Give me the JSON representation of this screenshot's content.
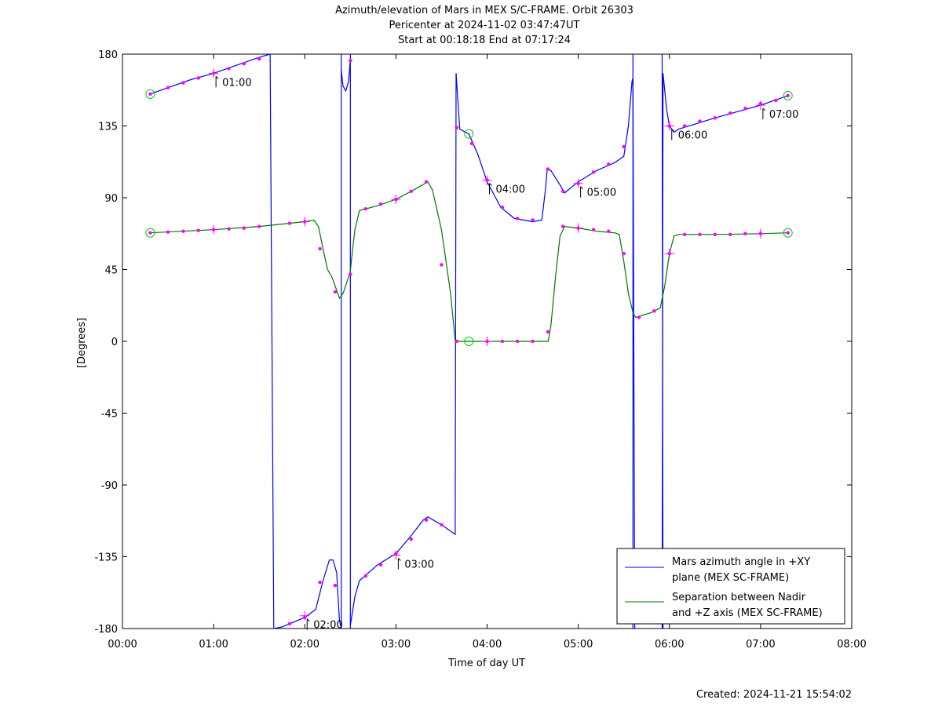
{
  "chart_data": {
    "type": "line",
    "title": [
      "Azimuth/elevation of Mars in MEX S/C-FRAME.  Orbit 26303",
      "Pericenter at 2024-11-02 03:47:47UT",
      "Start at 00:18:18 End at 07:17:24"
    ],
    "xlabel": "Time of day UT",
    "ylabel": "[Degrees]",
    "xlim": [
      0,
      8
    ],
    "ylim": [
      -180,
      180
    ],
    "x_ticks": [
      0,
      1,
      2,
      3,
      4,
      5,
      6,
      7,
      8
    ],
    "x_tick_labels": [
      "00:00",
      "01:00",
      "02:00",
      "03:00",
      "04:00",
      "05:00",
      "06:00",
      "07:00",
      "08:00"
    ],
    "y_ticks": [
      180,
      135,
      90,
      45,
      0,
      -45,
      -90,
      -135,
      -180
    ],
    "y_tick_labels": [
      "180",
      "135",
      "90",
      "45",
      "0",
      "-45",
      "-90",
      "-135",
      "-180"
    ],
    "grid": false,
    "legend_position": "bottom-right",
    "series": [
      {
        "name_lines": [
          "Mars azimuth angle in +XY",
          "plane (MEX SC-FRAME)"
        ],
        "color": "#0000ff",
        "segments": [
          [
            [
              0.305,
              155
            ],
            [
              0.5,
              159
            ],
            [
              0.75,
              164
            ],
            [
              1.0,
              168
            ],
            [
              1.25,
              173
            ],
            [
              1.5,
              178
            ],
            [
              1.62,
              180
            ]
          ],
          [
            [
              1.66,
              -180
            ],
            [
              1.75,
              -179
            ],
            [
              2.0,
              -173
            ],
            [
              2.12,
              -168
            ],
            [
              2.2,
              -150
            ],
            [
              2.27,
              -137
            ],
            [
              2.31,
              -137
            ],
            [
              2.35,
              -145
            ],
            [
              2.38,
              -175
            ],
            [
              2.4,
              -180
            ]
          ],
          [
            [
              2.4,
              170
            ],
            [
              2.42,
              160
            ],
            [
              2.45,
              157
            ],
            [
              2.48,
              163
            ],
            [
              2.5,
              176
            ]
          ],
          [
            [
              2.5,
              -178
            ],
            [
              2.55,
              -160
            ],
            [
              2.6,
              -150
            ],
            [
              2.8,
              -140
            ],
            [
              3.0,
              -133
            ],
            [
              3.15,
              -123
            ],
            [
              3.3,
              -112
            ],
            [
              3.35,
              -110
            ],
            [
              3.5,
              -115
            ],
            [
              3.65,
              -121
            ],
            [
              3.66,
              168
            ]
          ],
          [
            [
              3.66,
              168
            ],
            [
              3.7,
              133
            ],
            [
              3.8,
              130
            ],
            [
              3.9,
              117
            ],
            [
              4.0,
              100
            ],
            [
              4.15,
              84
            ],
            [
              4.3,
              77
            ],
            [
              4.5,
              75
            ],
            [
              4.6,
              76
            ],
            [
              4.64,
              95
            ],
            [
              4.66,
              108
            ],
            [
              4.7,
              107
            ],
            [
              4.8,
              98
            ],
            [
              4.85,
              93
            ],
            [
              5.0,
              100
            ],
            [
              5.2,
              107
            ],
            [
              5.4,
              112
            ],
            [
              5.5,
              116
            ],
            [
              5.55,
              135
            ],
            [
              5.59,
              163
            ],
            [
              5.6,
              165
            ]
          ],
          [
            [
              5.6,
              165
            ],
            [
              5.62,
              -180
            ]
          ],
          [
            [
              5.92,
              -180
            ],
            [
              5.93,
              168
            ]
          ],
          [
            [
              5.93,
              168
            ],
            [
              5.97,
              145
            ],
            [
              6.0,
              135
            ],
            [
              6.05,
              131
            ],
            [
              6.1,
              133
            ],
            [
              6.5,
              140
            ],
            [
              7.0,
              148
            ],
            [
              7.3,
              154
            ]
          ]
        ],
        "drops": [
          [
            1.62,
            1.66
          ],
          [
            2.4,
            2.4
          ],
          [
            2.5,
            2.5
          ],
          [
            5.6,
            5.6
          ],
          [
            5.92,
            5.93
          ]
        ],
        "markers": [
          [
            0.305,
            155
          ],
          [
            0.5,
            159
          ],
          [
            0.667,
            162
          ],
          [
            0.833,
            165
          ],
          [
            1.0,
            168
          ],
          [
            1.167,
            171
          ],
          [
            1.333,
            174
          ],
          [
            1.5,
            177
          ],
          [
            1.833,
            -177
          ],
          [
            2.0,
            -173
          ],
          [
            2.167,
            -151
          ],
          [
            2.333,
            -153
          ],
          [
            2.5,
            176
          ],
          [
            2.667,
            -147
          ],
          [
            2.833,
            -140
          ],
          [
            3.0,
            -133
          ],
          [
            3.167,
            -124
          ],
          [
            3.333,
            -112
          ],
          [
            3.5,
            -115
          ],
          [
            3.667,
            134
          ],
          [
            3.833,
            124
          ],
          [
            4.0,
            101
          ],
          [
            4.167,
            84
          ],
          [
            4.333,
            77
          ],
          [
            4.5,
            76
          ],
          [
            4.667,
            108
          ],
          [
            4.833,
            94
          ],
          [
            5.0,
            99
          ],
          [
            5.167,
            106
          ],
          [
            5.333,
            111
          ],
          [
            5.5,
            122
          ],
          [
            6.0,
            135
          ],
          [
            6.167,
            135
          ],
          [
            6.333,
            138
          ],
          [
            6.5,
            140
          ],
          [
            6.667,
            143
          ],
          [
            6.833,
            146
          ],
          [
            7.0,
            149
          ],
          [
            7.167,
            151
          ],
          [
            7.3,
            154
          ]
        ],
        "hour_marks": [
          [
            1.0,
            168
          ],
          [
            2.0,
            -172
          ],
          [
            3.0,
            -134
          ],
          [
            4.0,
            101
          ],
          [
            5.0,
            99
          ],
          [
            6.0,
            135
          ],
          [
            7.0,
            148
          ]
        ]
      },
      {
        "name_lines": [
          "Separation between Nadir",
          "and +Z axis (MEX SC-FRAME)"
        ],
        "color": "#007700",
        "segments": [
          [
            [
              0.305,
              68
            ],
            [
              1.0,
              70
            ],
            [
              1.5,
              72
            ],
            [
              2.0,
              75
            ],
            [
              2.1,
              76
            ],
            [
              2.15,
              72
            ],
            [
              2.2,
              58
            ],
            [
              2.25,
              45
            ],
            [
              2.3,
              40
            ],
            [
              2.35,
              32
            ],
            [
              2.38,
              27
            ],
            [
              2.42,
              30
            ],
            [
              2.45,
              35
            ],
            [
              2.5,
              44
            ],
            [
              2.52,
              55
            ],
            [
              2.55,
              70
            ],
            [
              2.6,
              82
            ],
            [
              2.8,
              85
            ],
            [
              3.0,
              89
            ],
            [
              3.2,
              95
            ],
            [
              3.35,
              100
            ],
            [
              3.4,
              95
            ],
            [
              3.5,
              70
            ],
            [
              3.6,
              30
            ],
            [
              3.65,
              0
            ],
            [
              3.8,
              0
            ],
            [
              4.0,
              0
            ],
            [
              4.5,
              0
            ],
            [
              4.67,
              0
            ],
            [
              4.7,
              10
            ],
            [
              4.75,
              40
            ],
            [
              4.8,
              66
            ],
            [
              4.85,
              72
            ],
            [
              5.0,
              71
            ],
            [
              5.2,
              69
            ],
            [
              5.4,
              68
            ],
            [
              5.45,
              67
            ],
            [
              5.5,
              50
            ],
            [
              5.55,
              30
            ],
            [
              5.6,
              18
            ],
            [
              5.63,
              15
            ],
            [
              5.8,
              18
            ],
            [
              5.9,
              21
            ],
            [
              5.95,
              35
            ],
            [
              6.0,
              55
            ],
            [
              6.05,
              66
            ],
            [
              6.1,
              67
            ],
            [
              6.5,
              67
            ],
            [
              7.0,
              67.5
            ],
            [
              7.3,
              68
            ]
          ]
        ],
        "markers": [
          [
            0.305,
            68
          ],
          [
            0.5,
            68.5
          ],
          [
            0.667,
            69
          ],
          [
            0.833,
            69.5
          ],
          [
            1.0,
            70
          ],
          [
            1.167,
            70.5
          ],
          [
            1.333,
            71
          ],
          [
            1.5,
            72
          ],
          [
            1.833,
            74
          ],
          [
            2.0,
            75
          ],
          [
            2.167,
            58
          ],
          [
            2.333,
            31
          ],
          [
            2.5,
            42
          ],
          [
            2.667,
            83
          ],
          [
            2.833,
            86
          ],
          [
            3.0,
            89
          ],
          [
            3.167,
            94
          ],
          [
            3.333,
            100
          ],
          [
            3.5,
            48
          ],
          [
            3.667,
            0
          ],
          [
            4.0,
            0
          ],
          [
            4.167,
            0
          ],
          [
            4.333,
            0
          ],
          [
            4.5,
            0
          ],
          [
            4.667,
            6
          ],
          [
            4.833,
            72
          ],
          [
            5.0,
            71
          ],
          [
            5.167,
            70
          ],
          [
            5.333,
            69
          ],
          [
            5.5,
            55
          ],
          [
            5.667,
            15
          ],
          [
            5.833,
            19
          ],
          [
            6.0,
            55
          ],
          [
            6.167,
            67
          ],
          [
            6.333,
            67
          ],
          [
            6.5,
            67
          ],
          [
            6.667,
            67
          ],
          [
            6.833,
            67.5
          ],
          [
            7.0,
            67.5
          ],
          [
            7.3,
            68
          ]
        ],
        "hour_marks": [
          [
            1.0,
            70
          ],
          [
            2.0,
            75
          ],
          [
            3.0,
            89
          ],
          [
            4.0,
            0
          ],
          [
            5.0,
            71
          ],
          [
            6.0,
            55
          ],
          [
            7.0,
            67.5
          ]
        ]
      }
    ],
    "circle_markers": [
      [
        0.305,
        155
      ],
      [
        7.3,
        154
      ],
      [
        0.305,
        68
      ],
      [
        7.3,
        68
      ],
      [
        3.8,
        130
      ],
      [
        3.8,
        0
      ]
    ],
    "annotations": [
      {
        "label": "01:00",
        "x": 1.0,
        "y": 168
      },
      {
        "label": "02:00",
        "x": 2.0,
        "y": -172
      },
      {
        "label": "03:00",
        "x": 3.0,
        "y": -134
      },
      {
        "label": "04:00",
        "x": 4.0,
        "y": 101
      },
      {
        "label": "05:00",
        "x": 5.0,
        "y": 99
      },
      {
        "label": "06:00",
        "x": 6.0,
        "y": 135
      },
      {
        "label": "07:00",
        "x": 7.0,
        "y": 148
      }
    ]
  },
  "footer": {
    "created": "Created: 2024-11-21 15:54:02"
  }
}
